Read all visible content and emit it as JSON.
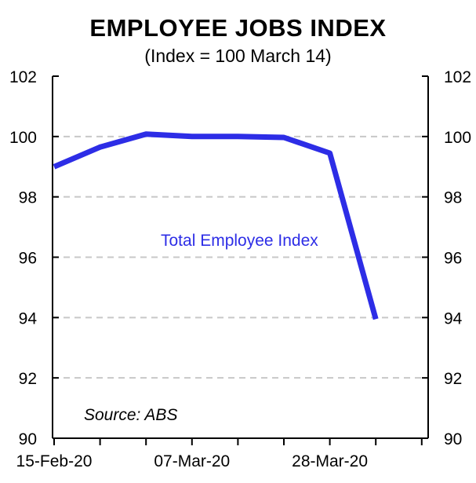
{
  "chart_data": {
    "type": "line",
    "title": "EMPLOYEE JOBS INDEX",
    "subtitle": "(Index = 100 March 14)",
    "x": [
      "15-Feb-20",
      "22-Feb-20",
      "29-Feb-20",
      "07-Mar-20",
      "14-Mar-20",
      "21-Mar-20",
      "28-Mar-20",
      "04-Apr-20"
    ],
    "series": [
      {
        "name": "Total Employee Index",
        "values": [
          99.0,
          99.65,
          100.08,
          100.0,
          100.0,
          99.97,
          99.45,
          93.95
        ],
        "color": "#2d2de6"
      }
    ],
    "x_tick_labels": [
      "15-Feb-20",
      "07-Mar-20",
      "28-Mar-20"
    ],
    "y_ticks": [
      90,
      92,
      94,
      96,
      98,
      100,
      102
    ],
    "ylim": [
      90,
      102
    ],
    "grid": "horizontal dashed",
    "annotation": "Source: ABS"
  }
}
